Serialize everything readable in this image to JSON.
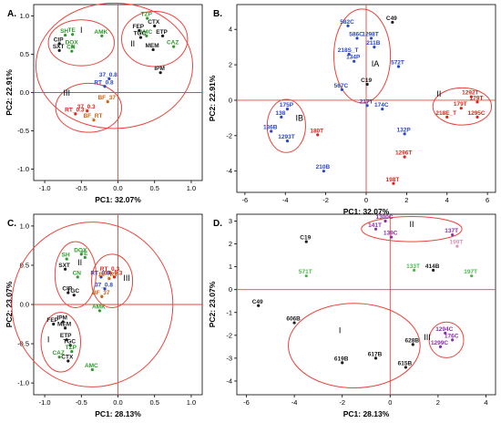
{
  "colors": {
    "black": "#1a1a1a",
    "green": "#2e9a2e",
    "blue": "#2a48c8",
    "red": "#e0241b",
    "orange": "#c86414",
    "purple": "#8a2fa8",
    "pink": "#e58fb8",
    "lightgreen": "#4cb84c",
    "ellipse": "#e8453c"
  },
  "chart_data": [
    {
      "type": "scatter",
      "panel": "A.",
      "xlabel": "PC1: 32.07%",
      "ylabel": "PC2: 22.91%",
      "xlim": [
        -1.15,
        1.15
      ],
      "ylim": [
        -1.15,
        1.15
      ],
      "xticks": [
        -1.0,
        -0.5,
        0.0,
        0.5,
        1.0
      ],
      "yticks": [
        -1.0,
        -0.5,
        0.0,
        0.5,
        1.0
      ],
      "tick_labels_x": [
        "-1.0",
        "-0.5",
        "0.0",
        "0.5",
        "1.0"
      ],
      "tick_labels_y": [
        "-1.0",
        "-0.5",
        "0.0",
        "0.5",
        "1.0"
      ],
      "points": [
        {
          "x": -0.72,
          "y": 0.75,
          "label": "SH",
          "color": "green"
        },
        {
          "x": -0.62,
          "y": 0.76,
          "label": "TE",
          "color": "green"
        },
        {
          "x": -0.22,
          "y": 0.74,
          "label": "AMK",
          "color": "green"
        },
        {
          "x": -0.8,
          "y": 0.64,
          "label": "CIP",
          "color": "black"
        },
        {
          "x": -0.62,
          "y": 0.6,
          "label": "DOX",
          "color": "green"
        },
        {
          "x": -0.8,
          "y": 0.55,
          "label": "SXT",
          "color": "black"
        },
        {
          "x": -0.63,
          "y": 0.54,
          "label": "CN",
          "color": "green"
        },
        {
          "x": 0.4,
          "y": 0.97,
          "label": "TZP",
          "color": "green"
        },
        {
          "x": 0.5,
          "y": 0.87,
          "label": "CTX",
          "color": "black"
        },
        {
          "x": 0.29,
          "y": 0.81,
          "label": "FEP",
          "color": "black"
        },
        {
          "x": 0.39,
          "y": 0.74,
          "label": "AMC",
          "color": "green"
        },
        {
          "x": 0.61,
          "y": 0.74,
          "label": "ETP",
          "color": "black"
        },
        {
          "x": 0.31,
          "y": 0.72,
          "label": "TGC",
          "color": "black"
        },
        {
          "x": 0.48,
          "y": 0.56,
          "label": "MEM",
          "color": "black"
        },
        {
          "x": 0.76,
          "y": 0.6,
          "label": "CAZ",
          "color": "green"
        },
        {
          "x": 0.58,
          "y": 0.26,
          "label": "IPM",
          "color": "black"
        },
        {
          "x": -0.12,
          "y": 0.18,
          "label": "37_0.8",
          "color": "blue"
        },
        {
          "x": -0.18,
          "y": 0.08,
          "label": "RT_0.8",
          "color": "blue"
        },
        {
          "x": -0.14,
          "y": -0.12,
          "label": "BF_37",
          "color": "orange"
        },
        {
          "x": -0.58,
          "y": -0.28,
          "label": "RT_0.3",
          "color": "red"
        },
        {
          "x": -0.42,
          "y": -0.24,
          "label": "37_0.3",
          "color": "red"
        },
        {
          "x": -0.33,
          "y": -0.36,
          "label": "BF_RT",
          "color": "orange"
        }
      ],
      "clusters": [
        {
          "label": "I",
          "cx": -0.5,
          "cy": 0.65,
          "rx": 0.45,
          "ry": 0.3,
          "lx": -0.5,
          "ly": 0.78
        },
        {
          "label": "II",
          "cx": 0.5,
          "cy": 0.7,
          "rx": 0.45,
          "ry": 0.36,
          "lx": 0.2,
          "ly": 0.6
        },
        {
          "label": "III",
          "cx": -0.4,
          "cy": -0.2,
          "rx": 0.45,
          "ry": 0.32,
          "lx": -0.7,
          "ly": -0.04
        },
        {
          "label": "",
          "cx": -0.05,
          "cy": 0.35,
          "rx": 1.07,
          "ry": 0.82,
          "lx": 0,
          "ly": 0
        }
      ]
    },
    {
      "type": "scatter",
      "panel": "B.",
      "xlabel": "PC1: 32.07%",
      "ylabel": "PC2: 22.91%",
      "xlim": [
        -6.4,
        6.4
      ],
      "ylim": [
        -5.2,
        5.4
      ],
      "xticks": [
        -6,
        -4,
        -2,
        0,
        2,
        4,
        6
      ],
      "yticks": [
        -4,
        -2,
        0,
        2,
        4
      ],
      "tick_labels_x": [
        "-6",
        "-4",
        "-2",
        "0",
        "2",
        "4",
        "6"
      ],
      "tick_labels_y": [
        "-4",
        "-2",
        "0",
        "2",
        "4"
      ],
      "points": [
        {
          "x": 1.3,
          "y": 4.4,
          "label": "C49",
          "color": "black"
        },
        {
          "x": -0.9,
          "y": 4.2,
          "label": "582C",
          "color": "blue"
        },
        {
          "x": -0.45,
          "y": 3.5,
          "label": "586C",
          "color": "blue"
        },
        {
          "x": 0.25,
          "y": 3.5,
          "label": "1298T",
          "color": "blue"
        },
        {
          "x": 0.4,
          "y": 3.0,
          "label": "211B",
          "color": "blue"
        },
        {
          "x": -0.85,
          "y": 2.6,
          "label": "218S_T",
          "color": "blue"
        },
        {
          "x": -0.6,
          "y": 2.2,
          "label": "134P",
          "color": "blue"
        },
        {
          "x": 1.6,
          "y": 1.9,
          "label": "572T",
          "color": "blue"
        },
        {
          "x": 0.05,
          "y": 0.9,
          "label": "C19",
          "color": "black"
        },
        {
          "x": -1.2,
          "y": 0.6,
          "label": "567C",
          "color": "blue"
        },
        {
          "x": 0.05,
          "y": -0.3,
          "label": "217T",
          "color": "blue"
        },
        {
          "x": 0.8,
          "y": -0.5,
          "label": "174C",
          "color": "blue"
        },
        {
          "x": -3.9,
          "y": -0.5,
          "label": "175P",
          "color": "blue"
        },
        {
          "x": -4.2,
          "y": -0.95,
          "label": "138",
          "color": "blue"
        },
        {
          "x": -4.7,
          "y": -1.75,
          "label": "136B",
          "color": "blue"
        },
        {
          "x": -3.9,
          "y": -2.3,
          "label": "1293T",
          "color": "blue"
        },
        {
          "x": -2.4,
          "y": -1.95,
          "label": "180T",
          "color": "red"
        },
        {
          "x": 1.9,
          "y": -1.9,
          "label": "132P",
          "color": "blue"
        },
        {
          "x": 1.9,
          "y": -3.2,
          "label": "1296T",
          "color": "red"
        },
        {
          "x": -2.1,
          "y": -4.0,
          "label": "210B",
          "color": "blue"
        },
        {
          "x": 1.35,
          "y": -4.7,
          "label": "198T",
          "color": "red"
        },
        {
          "x": 5.2,
          "y": 0.2,
          "label": "1292T",
          "color": "red"
        },
        {
          "x": 5.5,
          "y": -0.1,
          "label": "179T",
          "color": "red"
        },
        {
          "x": 4.7,
          "y": -0.45,
          "label": "179T",
          "color": "red"
        },
        {
          "x": 4.0,
          "y": -0.95,
          "label": "218E_T",
          "color": "red"
        },
        {
          "x": 5.5,
          "y": -0.95,
          "label": "1295C",
          "color": "red"
        }
      ],
      "clusters": [
        {
          "label": "IA",
          "cx": -0.2,
          "cy": 2.5,
          "rx": 1.4,
          "ry": 2.65,
          "lx": 0.45,
          "ly": 1.9
        },
        {
          "label": "IB",
          "cx": -3.95,
          "cy": -1.45,
          "rx": 0.95,
          "ry": 1.5,
          "lx": -3.3,
          "ly": -1.15
        },
        {
          "label": "II",
          "cx": 4.75,
          "cy": -0.35,
          "rx": 1.45,
          "ry": 1.05,
          "lx": 3.6,
          "ly": 0.2
        }
      ]
    },
    {
      "type": "scatter",
      "panel": "C.",
      "xlabel": "PC1: 28.13%",
      "ylabel": "PC2: 23.07%",
      "xlim": [
        -1.15,
        1.15
      ],
      "ylim": [
        -1.15,
        1.15
      ],
      "xticks": [
        -1.0,
        -0.5,
        0.0,
        0.5,
        1.0
      ],
      "yticks": [
        -1.0,
        -0.5,
        0.0,
        0.5,
        1.0
      ],
      "tick_labels_x": [
        "-1.0",
        "-0.5",
        "0.0",
        "0.5",
        "1.0"
      ],
      "tick_labels_y": [
        "-1.0",
        "-0.5",
        "0.0",
        "0.5",
        "1.0"
      ],
      "points": [
        {
          "x": -0.7,
          "y": 0.58,
          "label": "SH",
          "color": "green"
        },
        {
          "x": -0.5,
          "y": 0.64,
          "label": "DOX",
          "color": "green"
        },
        {
          "x": -0.45,
          "y": 0.6,
          "label": "TE",
          "color": "green"
        },
        {
          "x": -0.72,
          "y": 0.45,
          "label": "SXT",
          "color": "black"
        },
        {
          "x": -0.55,
          "y": 0.35,
          "label": "CN",
          "color": "green"
        },
        {
          "x": -0.68,
          "y": 0.15,
          "label": "CIP",
          "color": "black"
        },
        {
          "x": -0.6,
          "y": 0.12,
          "label": "TGC",
          "color": "black"
        },
        {
          "x": -0.25,
          "y": -0.08,
          "label": "AMK",
          "color": "green"
        },
        {
          "x": -0.1,
          "y": 0.4,
          "label": "RT_0.3",
          "color": "red"
        },
        {
          "x": -0.05,
          "y": 0.35,
          "label": "37_0.3",
          "color": "red"
        },
        {
          "x": -0.23,
          "y": 0.35,
          "label": "RT_0.8",
          "color": "blue"
        },
        {
          "x": -0.12,
          "y": 0.33,
          "label": "BF_RT",
          "color": "orange"
        },
        {
          "x": -0.18,
          "y": 0.2,
          "label": "37_0.8",
          "color": "blue"
        },
        {
          "x": -0.22,
          "y": 0.1,
          "label": "BF_37",
          "color": "orange"
        },
        {
          "x": -0.88,
          "y": -0.25,
          "label": "FEP",
          "color": "black"
        },
        {
          "x": -0.75,
          "y": -0.22,
          "label": "IPM",
          "color": "black"
        },
        {
          "x": -0.72,
          "y": -0.3,
          "label": "MEM",
          "color": "black"
        },
        {
          "x": -0.7,
          "y": -0.45,
          "label": "ETP",
          "color": "black"
        },
        {
          "x": -0.65,
          "y": -0.52,
          "label": "TGC",
          "color": "black"
        },
        {
          "x": -0.63,
          "y": -0.6,
          "label": "TZP",
          "color": "green"
        },
        {
          "x": -0.8,
          "y": -0.67,
          "label": "CAZ",
          "color": "green"
        },
        {
          "x": -0.68,
          "y": -0.72,
          "label": "CTX",
          "color": "black"
        },
        {
          "x": -0.35,
          "y": -0.83,
          "label": "AMC",
          "color": "green"
        }
      ],
      "clusters": [
        {
          "label": "I",
          "cx": -0.78,
          "cy": -0.48,
          "rx": 0.27,
          "ry": 0.38,
          "lx": -0.95,
          "ly": -0.48
        },
        {
          "label": "II",
          "cx": -0.58,
          "cy": 0.38,
          "rx": 0.28,
          "ry": 0.42,
          "lx": -0.52,
          "ly": 0.5
        },
        {
          "label": "III",
          "cx": -0.08,
          "cy": 0.3,
          "rx": 0.28,
          "ry": 0.34,
          "lx": 0.12,
          "ly": 0.3
        },
        {
          "label": "",
          "cx": -0.35,
          "cy": 0.0,
          "rx": 1.1,
          "ry": 1.05,
          "lx": 0,
          "ly": 0
        }
      ]
    },
    {
      "type": "scatter",
      "panel": "D.",
      "xlabel": "PC1: 28.13%",
      "ylabel": "PC2: 23.07%",
      "xlim": [
        -6.4,
        4.4
      ],
      "ylim": [
        -4.6,
        3.3
      ],
      "xticks": [
        -6,
        -4,
        -2,
        0,
        2,
        4
      ],
      "yticks": [
        -4,
        -3,
        -2,
        -1,
        0,
        1,
        2,
        3
      ],
      "tick_labels_x": [
        "-6",
        "-4",
        "-2",
        "0",
        "2",
        "4"
      ],
      "tick_labels_y": [
        "-4",
        "-3",
        "-2",
        "-1",
        "0",
        "1",
        "2",
        "3"
      ],
      "points": [
        {
          "x": -0.2,
          "y": 3.0,
          "label": "1300C",
          "color": "purple"
        },
        {
          "x": -0.6,
          "y": 2.65,
          "label": "141T",
          "color": "purple"
        },
        {
          "x": 0.05,
          "y": 2.3,
          "label": "139C",
          "color": "purple"
        },
        {
          "x": 2.6,
          "y": 2.4,
          "label": "137T",
          "color": "purple"
        },
        {
          "x": 2.8,
          "y": 1.9,
          "label": "199T",
          "color": "pink"
        },
        {
          "x": -3.5,
          "y": 2.1,
          "label": "C19",
          "color": "black"
        },
        {
          "x": -3.5,
          "y": 0.6,
          "label": "571T",
          "color": "lightgreen"
        },
        {
          "x": 1.0,
          "y": 0.85,
          "label": "133T",
          "color": "lightgreen"
        },
        {
          "x": 1.8,
          "y": 0.85,
          "label": "414B",
          "color": "black"
        },
        {
          "x": 3.4,
          "y": 0.6,
          "label": "197T",
          "color": "lightgreen"
        },
        {
          "x": -5.5,
          "y": -0.7,
          "label": "C49",
          "color": "black"
        },
        {
          "x": -4.0,
          "y": -1.45,
          "label": "606B",
          "color": "black"
        },
        {
          "x": 2.3,
          "y": -1.9,
          "label": "1294C",
          "color": "purple"
        },
        {
          "x": 2.6,
          "y": -2.2,
          "label": "176C",
          "color": "purple"
        },
        {
          "x": 0.95,
          "y": -2.4,
          "label": "628B",
          "color": "black"
        },
        {
          "x": 2.1,
          "y": -2.5,
          "label": "1299C",
          "color": "purple"
        },
        {
          "x": -0.6,
          "y": -3.0,
          "label": "617B",
          "color": "black"
        },
        {
          "x": -2.0,
          "y": -3.2,
          "label": "619B",
          "color": "black"
        },
        {
          "x": 0.65,
          "y": -3.4,
          "label": "615B",
          "color": "black"
        }
      ],
      "clusters": [
        {
          "label": "I",
          "cx": -1.5,
          "cy": -2.45,
          "rx": 2.75,
          "ry": 1.85,
          "lx": -2.1,
          "ly": -1.9
        },
        {
          "label": "II",
          "cx": 0.9,
          "cy": 2.65,
          "rx": 2.1,
          "ry": 0.55,
          "lx": 0.9,
          "ly": 2.75
        },
        {
          "label": "III",
          "cx": 2.35,
          "cy": -2.2,
          "rx": 0.72,
          "ry": 0.78,
          "lx": 1.55,
          "ly": -2.2
        }
      ]
    }
  ]
}
